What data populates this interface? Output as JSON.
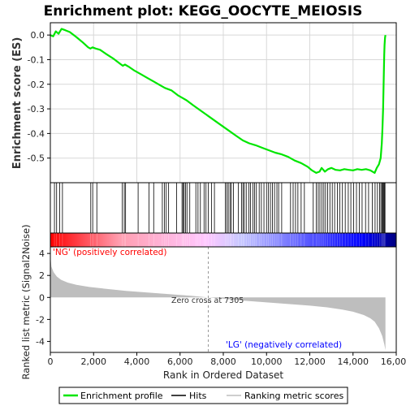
{
  "chart_data": {
    "title": "Enrichment plot: KEGG_OOCYTE_MEIOSIS",
    "type": "line",
    "x_axis": {
      "label": "Rank in Ordered Dataset",
      "range": [
        0,
        16000
      ],
      "ticks": [
        0,
        2000,
        4000,
        6000,
        8000,
        10000,
        12000,
        14000,
        16000
      ],
      "tick_labels": [
        "0",
        "2,000",
        "4,000",
        "6,000",
        "8,000",
        "10,000",
        "12,000",
        "14,000",
        "16,000"
      ]
    },
    "es_panel": {
      "ylabel": "Enrichment score (ES)",
      "ylim": [
        -0.6,
        0.05
      ],
      "ticks": [
        0.0,
        -0.1,
        -0.2,
        -0.3,
        -0.4,
        -0.5
      ],
      "tick_labels": [
        "0.0",
        "-0.1",
        "-0.2",
        "-0.3",
        "-0.4",
        "-0.5"
      ],
      "grid": true,
      "color": "#00e600",
      "series": {
        "name": "Enrichment profile",
        "x": [
          0,
          130,
          250,
          380,
          520,
          680,
          900,
          1200,
          1500,
          1750,
          1850,
          1950,
          2100,
          2300,
          2600,
          2900,
          3200,
          3350,
          3450,
          3650,
          3900,
          4200,
          4500,
          4800,
          5100,
          5300,
          5600,
          5900,
          6100,
          6300,
          6600,
          7000,
          7400,
          7800,
          8200,
          8600,
          8900,
          9200,
          9500,
          9800,
          10100,
          10400,
          10700,
          11000,
          11300,
          11600,
          11900,
          12100,
          12300,
          12450,
          12550,
          12700,
          12850,
          13000,
          13200,
          13400,
          13600,
          13800,
          14000,
          14200,
          14400,
          14600,
          14800,
          15000,
          15100,
          15200,
          15280,
          15330,
          15360,
          15390,
          15410,
          15430,
          15445,
          15460,
          15480,
          15500
        ],
        "y": [
          0.0,
          -0.005,
          0.015,
          0.005,
          0.025,
          0.02,
          0.012,
          -0.008,
          -0.03,
          -0.05,
          -0.055,
          -0.05,
          -0.055,
          -0.06,
          -0.078,
          -0.095,
          -0.115,
          -0.125,
          -0.12,
          -0.13,
          -0.145,
          -0.16,
          -0.175,
          -0.19,
          -0.205,
          -0.215,
          -0.225,
          -0.245,
          -0.255,
          -0.265,
          -0.285,
          -0.31,
          -0.335,
          -0.36,
          -0.385,
          -0.41,
          -0.428,
          -0.44,
          -0.448,
          -0.458,
          -0.468,
          -0.478,
          -0.485,
          -0.495,
          -0.51,
          -0.52,
          -0.535,
          -0.55,
          -0.56,
          -0.555,
          -0.54,
          -0.555,
          -0.545,
          -0.54,
          -0.548,
          -0.55,
          -0.545,
          -0.548,
          -0.55,
          -0.545,
          -0.548,
          -0.545,
          -0.55,
          -0.56,
          -0.54,
          -0.525,
          -0.5,
          -0.44,
          -0.38,
          -0.3,
          -0.22,
          -0.14,
          -0.08,
          -0.04,
          -0.01,
          0.0
        ]
      }
    },
    "hits_panel": {
      "legend_label": "Hits",
      "hit_ranks": [
        190,
        290,
        430,
        560,
        1870,
        1960,
        2150,
        3330,
        3420,
        3480,
        4060,
        4560,
        4780,
        5180,
        5280,
        5360,
        5470,
        5840,
        6090,
        6140,
        6190,
        6250,
        6320,
        6450,
        6730,
        6830,
        6940,
        7110,
        7200,
        7310,
        7460,
        7590,
        8090,
        8160,
        8230,
        8310,
        8370,
        8470,
        8700,
        8840,
        8910,
        8970,
        9060,
        9180,
        9260,
        9370,
        9450,
        9530,
        9660,
        9760,
        9880,
        10000,
        10090,
        10180,
        10270,
        10370,
        10480,
        10560,
        10700,
        11110,
        11230,
        11340,
        11450,
        11600,
        11750,
        12160,
        12300,
        12390,
        12470,
        12560,
        12650,
        12730,
        12830,
        12930,
        13040,
        13150,
        13280,
        13390,
        13510,
        13640,
        13780,
        13900,
        14030,
        14160,
        14290,
        14420,
        14580,
        14720,
        14890,
        15020,
        15130,
        15230,
        15290,
        15340,
        15380,
        15420,
        15450,
        15480
      ]
    },
    "heatmap_bar": {
      "colors": [
        "#ff0000",
        "#ff9eb0",
        "#ffc8ff",
        "#c8c8ff",
        "#0000ff",
        "#000080"
      ],
      "label_pos": "'NG' (positively correlated)",
      "label_neg": "'LG' (negatively correlated)",
      "label_pos_color": "#ff0000",
      "label_neg_color": "#0000ff"
    },
    "metric_panel": {
      "ylabel": "Ranked list metric (Signal2Noise)",
      "ylim": [
        -5,
        4.6
      ],
      "ticks": [
        4,
        2,
        0,
        -2,
        -4
      ],
      "tick_labels": [
        "4",
        "2",
        "0",
        "-2",
        "-4"
      ],
      "zero_cross_label": "Zero cross at 7305",
      "zero_cross": 7305,
      "fill_color": "#bebebe",
      "profile": {
        "x": [
          0,
          50,
          150,
          300,
          500,
          800,
          1200,
          1800,
          2500,
          3500,
          4500,
          5500,
          6500,
          7305,
          8000,
          9000,
          10000,
          11000,
          12000,
          12800,
          13500,
          14000,
          14500,
          14800,
          15000,
          15200,
          15350,
          15450,
          15500
        ],
        "y": [
          3.8,
          2.8,
          2.3,
          1.9,
          1.6,
          1.35,
          1.15,
          0.95,
          0.8,
          0.6,
          0.45,
          0.3,
          0.15,
          0.0,
          -0.12,
          -0.3,
          -0.45,
          -0.6,
          -0.75,
          -0.9,
          -1.1,
          -1.3,
          -1.6,
          -1.9,
          -2.2,
          -2.8,
          -3.5,
          -4.3,
          -4.8
        ]
      }
    },
    "legend": {
      "items": [
        {
          "label": "Enrichment profile",
          "color": "#00e600"
        },
        {
          "label": "Hits",
          "color": "#000000"
        },
        {
          "label": "Ranking metric scores",
          "color": "#bebebe"
        }
      ]
    }
  }
}
